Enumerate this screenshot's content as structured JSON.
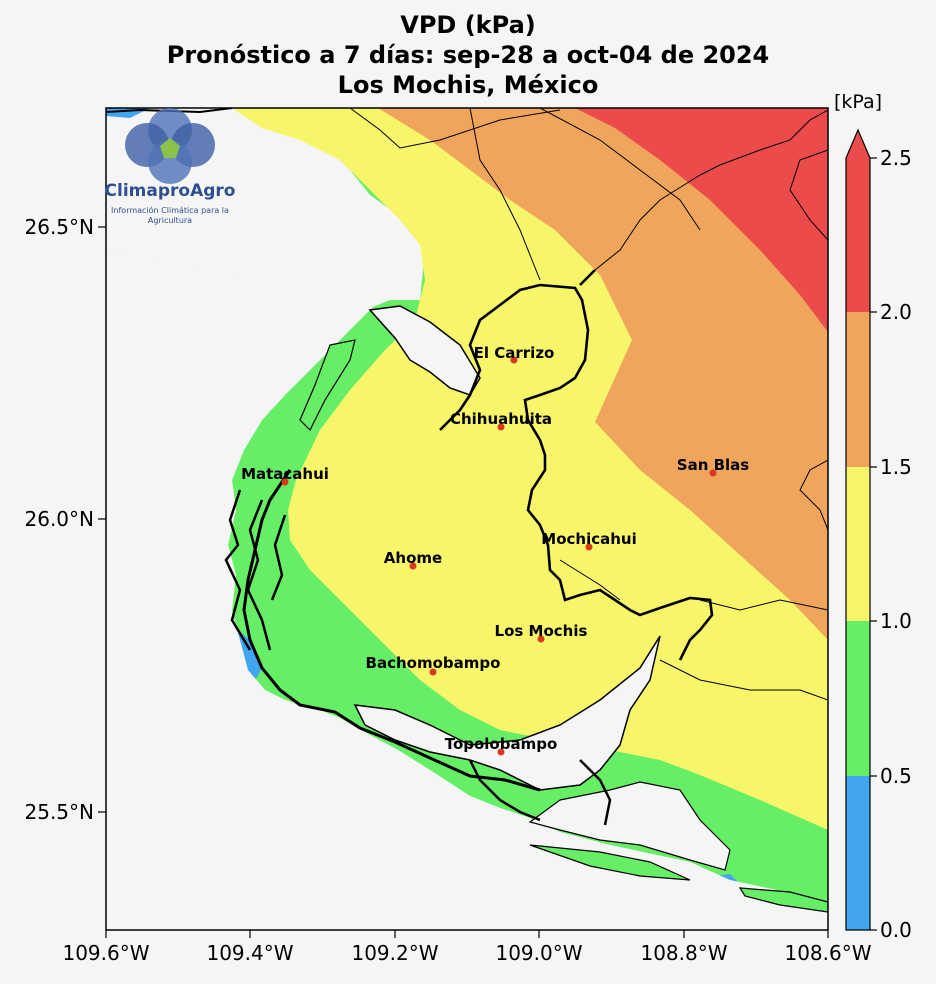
{
  "title": {
    "line1": "VPD (kPa)",
    "line2": "Pronóstico a 7 días: sep-28 a oct-04 de 2024",
    "line3": "Los Mochis, México"
  },
  "logo": {
    "name": "ClimaproAgro",
    "tagline_line1": "Información Climática para la",
    "tagline_line2": "Agricultura"
  },
  "axes": {
    "x_ticks": [
      "109.6°W",
      "109.4°W",
      "109.2°W",
      "109.0°W",
      "108.8°W",
      "108.6°W"
    ],
    "y_ticks": [
      "26.5°N",
      "26.0°N",
      "25.5°N"
    ]
  },
  "colorbar": {
    "unit": "[kPa]",
    "levels": [
      "0.0",
      "0.5",
      "1.0",
      "1.5",
      "2.0",
      "2.5"
    ],
    "colors": [
      "#42a5f0",
      "#67ee67",
      "#f7f56a",
      "#f0a55c",
      "#ec4b4b"
    ]
  },
  "cities": [
    {
      "name": "El Carrizo"
    },
    {
      "name": "Chihuahuita"
    },
    {
      "name": "San Blas"
    },
    {
      "name": "Matacahui"
    },
    {
      "name": "Mochicahui"
    },
    {
      "name": "Ahome"
    },
    {
      "name": "Los Mochis"
    },
    {
      "name": "Bachomobampo"
    },
    {
      "name": "Topolobampo"
    }
  ]
}
